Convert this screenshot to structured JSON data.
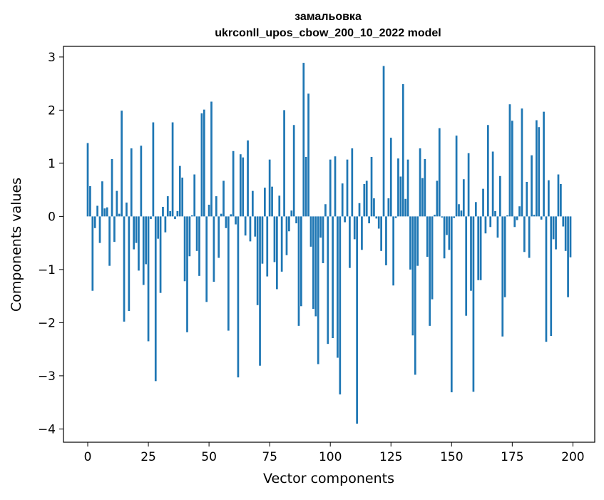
{
  "chart_data": {
    "type": "bar",
    "title": "замальовка",
    "subtitle": "ukrconll_upos_cbow_200_10_2022 model",
    "xlabel": "Vector components",
    "ylabel": "Components values",
    "xlim": [
      -10,
      209
    ],
    "ylim": [
      -4.25,
      3.2
    ],
    "xticks": [
      0,
      25,
      50,
      75,
      100,
      125,
      150,
      175,
      200
    ],
    "yticks": [
      -4,
      -3,
      -2,
      -1,
      0,
      1,
      2,
      3
    ],
    "ytick_labels": [
      "−4",
      "−3",
      "−2",
      "−1",
      "0",
      "1",
      "2",
      "3"
    ],
    "grid": false,
    "legend": "none",
    "bar_color": "#1f77b4",
    "x": [
      0,
      1,
      2,
      3,
      4,
      5,
      6,
      7,
      8,
      9,
      10,
      11,
      12,
      13,
      14,
      15,
      16,
      17,
      18,
      19,
      20,
      21,
      22,
      23,
      24,
      25,
      26,
      27,
      28,
      29,
      30,
      31,
      32,
      33,
      34,
      35,
      36,
      37,
      38,
      39,
      40,
      41,
      42,
      43,
      44,
      45,
      46,
      47,
      48,
      49,
      50,
      51,
      52,
      53,
      54,
      55,
      56,
      57,
      58,
      59,
      60,
      61,
      62,
      63,
      64,
      65,
      66,
      67,
      68,
      69,
      70,
      71,
      72,
      73,
      74,
      75,
      76,
      77,
      78,
      79,
      80,
      81,
      82,
      83,
      84,
      85,
      86,
      87,
      88,
      89,
      90,
      91,
      92,
      93,
      94,
      95,
      96,
      97,
      98,
      99,
      100,
      101,
      102,
      103,
      104,
      105,
      106,
      107,
      108,
      109,
      110,
      111,
      112,
      113,
      114,
      115,
      116,
      117,
      118,
      119,
      120,
      121,
      122,
      123,
      124,
      125,
      126,
      127,
      128,
      129,
      130,
      131,
      132,
      133,
      134,
      135,
      136,
      137,
      138,
      139,
      140,
      141,
      142,
      143,
      144,
      145,
      146,
      147,
      148,
      149,
      150,
      151,
      152,
      153,
      154,
      155,
      156,
      157,
      158,
      159,
      160,
      161,
      162,
      163,
      164,
      165,
      166,
      167,
      168,
      169,
      170,
      171,
      172,
      173,
      174,
      175,
      176,
      177,
      178,
      179,
      180,
      181,
      182,
      183,
      184,
      185,
      186,
      187,
      188,
      189,
      190,
      191,
      192,
      193,
      194,
      195,
      196,
      197,
      198,
      199
    ],
    "values": [
      1.38,
      0.57,
      -1.4,
      -0.22,
      0.2,
      -0.5,
      0.66,
      0.15,
      0.17,
      -0.93,
      1.08,
      -0.48,
      0.48,
      0.05,
      1.99,
      -1.98,
      0.26,
      -1.78,
      1.28,
      -0.62,
      -0.5,
      -1.02,
      1.33,
      -1.29,
      -0.9,
      -2.35,
      -0.05,
      1.77,
      -3.1,
      -0.42,
      -1.44,
      0.18,
      -0.3,
      0.38,
      0.1,
      1.77,
      -0.05,
      0.1,
      0.95,
      0.73,
      -1.22,
      -2.18,
      -0.75,
      0.02,
      0.79,
      -0.65,
      -1.12,
      1.94,
      2.01,
      -1.61,
      0.22,
      2.16,
      -1.23,
      0.38,
      -0.78,
      0.05,
      0.67,
      -0.22,
      -2.15,
      0.04,
      1.23,
      -0.15,
      -3.03,
      1.17,
      1.11,
      -0.36,
      1.43,
      -0.47,
      0.48,
      -0.38,
      -1.67,
      -2.81,
      -0.89,
      0.54,
      -1.13,
      1.07,
      0.56,
      -0.86,
      -1.37,
      0.39,
      -1.04,
      2.0,
      -0.73,
      -0.28,
      0.11,
      1.72,
      -0.13,
      -2.06,
      -1.69,
      2.89,
      1.12,
      2.31,
      -0.57,
      -1.74,
      -1.88,
      -2.78,
      -0.4,
      -0.88,
      0.23,
      -2.4,
      1.07,
      -2.29,
      1.13,
      -2.66,
      -3.35,
      0.62,
      -0.11,
      1.07,
      -0.97,
      1.28,
      -0.43,
      -3.9,
      0.25,
      -0.63,
      0.61,
      0.67,
      -0.13,
      1.12,
      0.34,
      -0.04,
      -0.23,
      -0.65,
      2.83,
      -0.92,
      0.34,
      1.48,
      -1.3,
      -0.03,
      1.09,
      0.75,
      2.49,
      0.33,
      1.07,
      -1.0,
      -2.24,
      -2.98,
      -0.93,
      1.28,
      0.72,
      1.08,
      -0.76,
      -2.06,
      -1.56,
      0.03,
      0.67,
      1.66,
      -0.02,
      -0.79,
      -0.35,
      -0.63,
      -3.31,
      -0.03,
      1.52,
      0.23,
      0.11,
      0.7,
      -1.87,
      1.19,
      -1.4,
      -3.3,
      0.27,
      -1.2,
      -1.2,
      0.52,
      -0.32,
      1.72,
      -0.2,
      1.22,
      0.1,
      -0.4,
      0.76,
      -2.26,
      -1.52,
      0.02,
      2.11,
      1.8,
      -0.2,
      -0.07,
      0.19,
      2.03,
      -0.67,
      0.65,
      -0.78,
      1.15,
      0.03,
      1.81,
      1.68,
      -0.06,
      1.97,
      -2.36,
      0.68,
      -2.25,
      -0.43,
      -0.62,
      0.79,
      0.61,
      -0.19,
      -0.65,
      -1.52,
      -0.77
    ]
  }
}
